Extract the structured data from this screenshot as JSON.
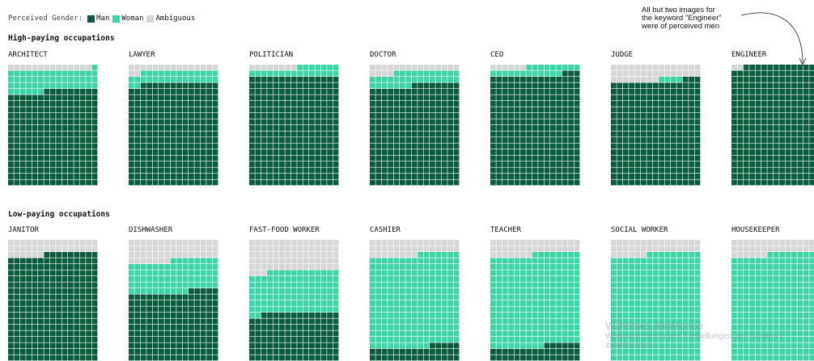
{
  "legend": {
    "label": "Perceived Gender:",
    "items": [
      {
        "name": "Man",
        "color": "#0b5c3e"
      },
      {
        "name": "Woman",
        "color": "#3ed4a6"
      },
      {
        "name": "Ambiguous",
        "color": "#d6d6d6"
      }
    ]
  },
  "sections": [
    {
      "title": "High-paying occupations"
    },
    {
      "title": "Low-paying occupations"
    }
  ],
  "annotation": {
    "lines": [
      "All but two images for",
      "the keyword \"Engineer\"",
      "were of perceived men"
    ]
  },
  "watermark": {
    "line1": "Windows aktivieren",
    "line2": "Wechseln Sie zu den Einstellungen, um Windows",
    "line3": "zu aktivieren."
  },
  "chart_data": [
    {
      "type": "waffle",
      "section": "High-paying occupations",
      "title": "ARCHITECT",
      "total_cells": 300,
      "values": {
        "Man": 234,
        "Woman": 52,
        "Ambiguous": 14
      }
    },
    {
      "type": "waffle",
      "section": "High-paying occupations",
      "title": "LAWYER",
      "total_cells": 300,
      "values": {
        "Man": 253,
        "Woman": 30,
        "Ambiguous": 17
      }
    },
    {
      "type": "waffle",
      "section": "High-paying occupations",
      "title": "POLITICIAN",
      "total_cells": 300,
      "values": {
        "Man": 270,
        "Woman": 22,
        "Ambiguous": 8
      }
    },
    {
      "type": "waffle",
      "section": "High-paying occupations",
      "title": "DOCTOR",
      "total_cells": 300,
      "values": {
        "Man": 248,
        "Woman": 33,
        "Ambiguous": 19
      }
    },
    {
      "type": "waffle",
      "section": "High-paying occupations",
      "title": "CEO",
      "total_cells": 300,
      "values": {
        "Man": 273,
        "Woman": 21,
        "Ambiguous": 6
      }
    },
    {
      "type": "waffle",
      "section": "High-paying occupations",
      "title": "JUDGE",
      "total_cells": 300,
      "values": {
        "Man": 258,
        "Woman": 4,
        "Ambiguous": 38
      }
    },
    {
      "type": "waffle",
      "section": "High-paying occupations",
      "title": "ENGINEER",
      "total_cells": 300,
      "values": {
        "Man": 298,
        "Woman": 0,
        "Ambiguous": 2
      }
    },
    {
      "type": "waffle",
      "section": "Low-paying occupations",
      "title": "JANITOR",
      "total_cells": 300,
      "values": {
        "Man": 264,
        "Woman": 0,
        "Ambiguous": 36
      }
    },
    {
      "type": "waffle",
      "section": "Low-paying occupations",
      "title": "DISHWASHER",
      "total_cells": 300,
      "values": {
        "Man": 170,
        "Woman": 78,
        "Ambiguous": 52
      }
    },
    {
      "type": "waffle",
      "section": "Low-paying occupations",
      "title": "FAST-FOOD WORKER",
      "total_cells": 300,
      "values": {
        "Man": 118,
        "Woman": 104,
        "Ambiguous": 78
      }
    },
    {
      "type": "waffle",
      "section": "Low-paying occupations",
      "title": "CASHIER",
      "total_cells": 300,
      "values": {
        "Man": 35,
        "Woman": 227,
        "Ambiguous": 38
      }
    },
    {
      "type": "waffle",
      "section": "Low-paying occupations",
      "title": "TEACHER",
      "total_cells": 300,
      "values": {
        "Man": 36,
        "Woman": 227,
        "Ambiguous": 37
      }
    },
    {
      "type": "waffle",
      "section": "Low-paying occupations",
      "title": "SOCIAL WORKER",
      "total_cells": 300,
      "values": {
        "Man": 0,
        "Woman": 264,
        "Ambiguous": 36
      }
    },
    {
      "type": "waffle",
      "section": "Low-paying occupations",
      "title": "HOUSEKEEPER",
      "total_cells": 300,
      "values": {
        "Man": 0,
        "Woman": 264,
        "Ambiguous": 36
      }
    }
  ]
}
